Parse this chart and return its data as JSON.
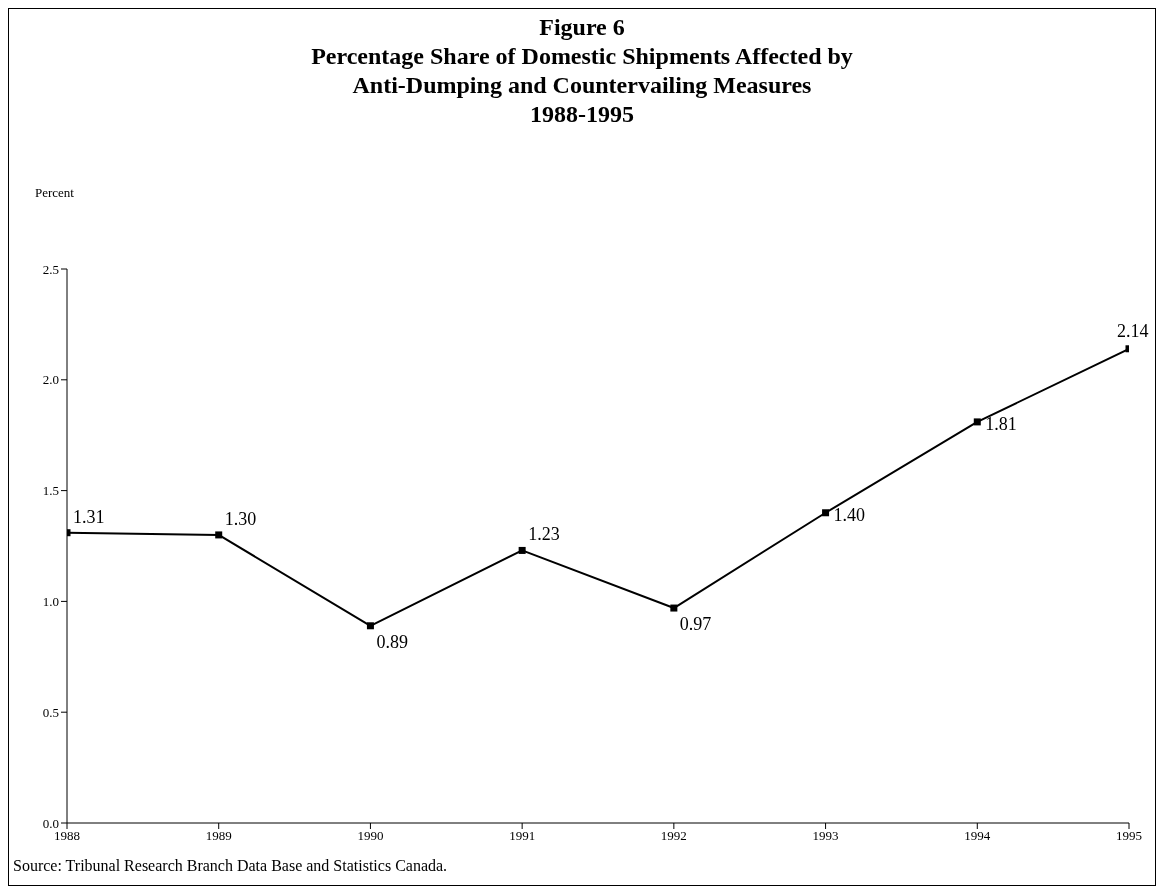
{
  "chart_data": {
    "type": "line",
    "title": "Figure 6",
    "subtitle": "Percentage Share of Domestic Shipments Affected by\nAnti-Dumping and Countervailing Measures\n1988-1995",
    "ylabel": "Percent",
    "annotations": [
      "Source: Tribunal Research Branch Data Base and Statistics Canada."
    ],
    "x": [
      1988,
      1989,
      1990,
      1991,
      1992,
      1993,
      1994,
      1995
    ],
    "series": [
      {
        "color": "#000000",
        "values": [
          1.31,
          1.3,
          0.89,
          1.23,
          0.97,
          1.4,
          1.81,
          2.14
        ],
        "value_labels": [
          "1.31",
          "1.30",
          "0.89",
          "1.23",
          "0.97",
          "1.40",
          "1.81",
          "2.14"
        ]
      }
    ],
    "xlim": [
      1988,
      1995
    ],
    "xticks": [
      1988,
      1989,
      1990,
      1991,
      1992,
      1993,
      1994,
      1995
    ],
    "ylim": [
      0,
      2.5
    ],
    "yticks": [
      {
        "value": 0,
        "label": "0.0"
      },
      {
        "value": 0.5,
        "label": "0.5"
      },
      {
        "value": 1,
        "label": "1.0"
      },
      {
        "value": 1.5,
        "label": "1.5"
      },
      {
        "value": 2,
        "label": "2.0"
      },
      {
        "value": 2.5,
        "label": "2.5"
      }
    ],
    "grid": false,
    "legend": false,
    "marker": "square",
    "line_style": "solid"
  }
}
